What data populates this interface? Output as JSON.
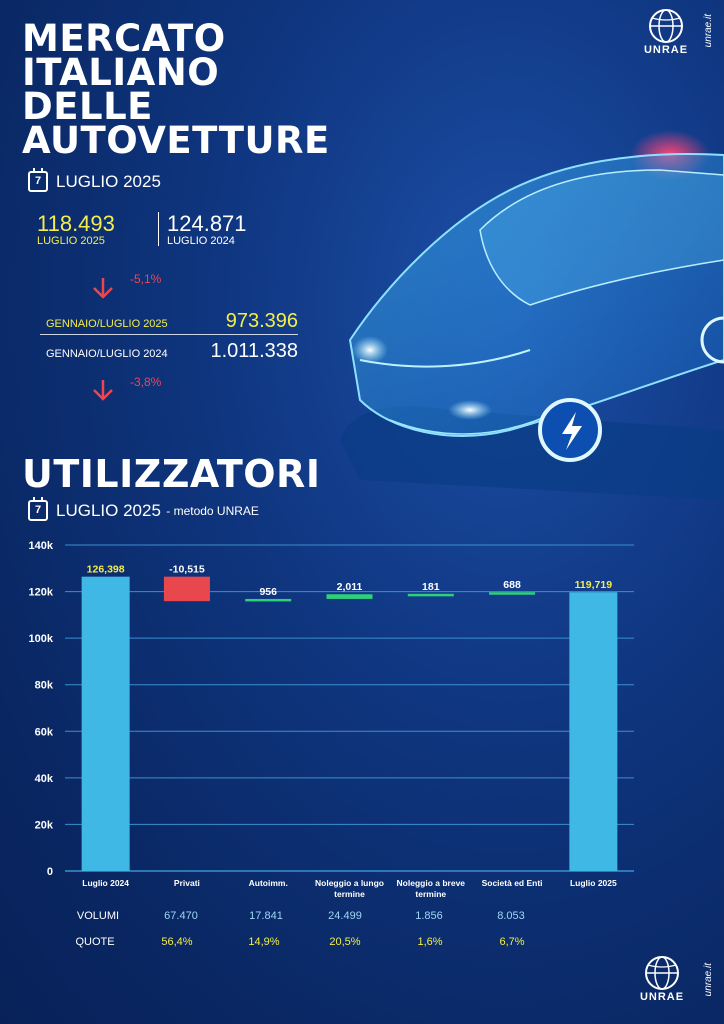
{
  "header": {
    "title_lines": [
      "MERCATO",
      "ITALIANO",
      "DELLE",
      "AUTOVETTURE"
    ],
    "date_day": "7",
    "date_label": "LUGLIO 2025"
  },
  "monthly": {
    "current_value": "118.493",
    "current_label": "LUGLIO 2025",
    "previous_value": "124.871",
    "previous_label": "LUGLIO 2024",
    "change": "-5,1%"
  },
  "ytd": {
    "current_label": "GENNAIO/LUGLIO 2025",
    "current_value": "973.396",
    "previous_label": "GENNAIO/LUGLIO 2024",
    "previous_value": "1.011.338",
    "change": "-3,8%"
  },
  "section": {
    "title": "UTILIZZATORI",
    "date_day": "7",
    "date_label": "LUGLIO 2025",
    "date_suffix": " - metodo UNRAE"
  },
  "logo": {
    "text": "UNRAE",
    "url": "unrae.it"
  },
  "colors": {
    "total": "#40b8e6",
    "negative": "#e8474d",
    "positive": "#2ed17a",
    "label_yellow": "#f3ee4a",
    "grid": "#3a8fd0"
  },
  "chart_data": {
    "type": "bar",
    "subtype": "waterfall",
    "categories": [
      "Luglio 2024",
      "Privati",
      "Autoimm.",
      "Noleggio a lungo termine",
      "Noleggio a breve termine",
      "Società ed Enti",
      "Luglio 2025"
    ],
    "values": [
      126398,
      -10515,
      956,
      2011,
      181,
      688,
      119719
    ],
    "data_labels": [
      "126,398",
      "-10,515",
      "956",
      "2,011",
      "181",
      "688",
      "119,719"
    ],
    "kinds": [
      "total",
      "delta",
      "delta",
      "delta",
      "delta",
      "delta",
      "total"
    ],
    "ylim": [
      0,
      140000
    ],
    "yticks": [
      0,
      20000,
      40000,
      60000,
      80000,
      100000,
      120000,
      140000
    ],
    "ytick_labels": [
      "0",
      "20k",
      "40k",
      "60k",
      "80k",
      "100k",
      "120k",
      "140k"
    ],
    "grid": true,
    "legend": "none"
  },
  "table": {
    "rows": [
      {
        "label": "VOLUMI",
        "values": [
          "67.470",
          "17.841",
          "24.499",
          "1.856",
          "8.053"
        ]
      },
      {
        "label": "QUOTE",
        "values": [
          "56,4%",
          "14,9%",
          "20,5%",
          "1,6%",
          "6,7%"
        ]
      }
    ]
  }
}
